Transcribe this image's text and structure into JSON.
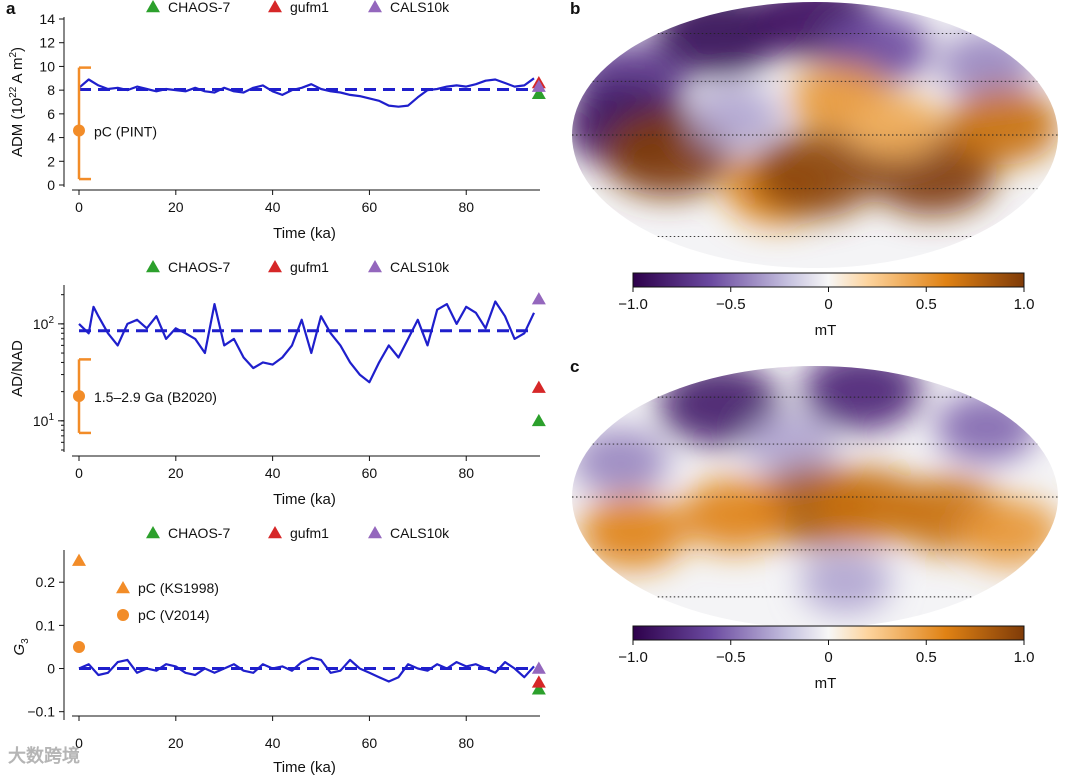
{
  "panel_labels": [
    "a",
    "b",
    "c"
  ],
  "watermark": "大数跨境",
  "chart_data": [
    {
      "type": "line",
      "panel": "a",
      "title": "",
      "xlabel": "Time (ka)",
      "ylabel": "ADM (10²² A m²)",
      "xlim": [
        -1,
        96
      ],
      "ylim": [
        0,
        14
      ],
      "xticks": [
        "0",
        "20",
        "40",
        "60",
        "80"
      ],
      "yticks": [
        "0",
        "2",
        "4",
        "6",
        "8",
        "10",
        "12",
        "14"
      ],
      "legend": [
        {
          "label": "CHAOS-7",
          "color": "#2ca02c"
        },
        {
          "label": "gufm1",
          "color": "#d62728"
        },
        {
          "label": "CALS10k",
          "color": "#9467bd"
        }
      ],
      "series": [
        {
          "name": "model",
          "color": "#1f1fcc",
          "x": [
            0,
            2,
            4,
            6,
            8,
            10,
            12,
            14,
            16,
            18,
            20,
            22,
            24,
            26,
            28,
            30,
            32,
            34,
            36,
            38,
            40,
            42,
            44,
            46,
            48,
            50,
            52,
            54,
            56,
            58,
            60,
            62,
            64,
            66,
            68,
            70,
            72,
            74,
            76,
            78,
            80,
            82,
            84,
            86,
            88,
            90,
            92,
            94
          ],
          "values": [
            8.2,
            8.9,
            8.4,
            8.1,
            8.2,
            8.0,
            8.3,
            8.1,
            7.9,
            8.1,
            8.0,
            7.9,
            8.2,
            7.9,
            7.8,
            8.2,
            7.9,
            7.8,
            8.2,
            8.4,
            7.9,
            7.6,
            8.0,
            8.2,
            8.5,
            8.1,
            7.9,
            7.8,
            7.6,
            7.5,
            7.3,
            7.1,
            6.7,
            6.6,
            6.7,
            7.4,
            8.0,
            8.1,
            8.3,
            8.4,
            8.3,
            8.5,
            8.8,
            8.9,
            8.6,
            8.3,
            8.4,
            9.0
          ]
        }
      ],
      "reference": {
        "label": "mean",
        "value": 8.05,
        "style": "dashed"
      },
      "markers": [
        {
          "label": "CHAOS-7",
          "x": 95,
          "y": 7.7,
          "color": "#2ca02c",
          "shape": "triangle"
        },
        {
          "label": "gufm1",
          "x": 95,
          "y": 8.6,
          "color": "#d62728",
          "shape": "triangle"
        },
        {
          "label": "CALS10k",
          "x": 95,
          "y": 8.3,
          "color": "#9467bd",
          "shape": "triangle"
        }
      ],
      "errorbar": {
        "label": "pC (PINT)",
        "x": 0,
        "y": 4.6,
        "low": 0.5,
        "high": 9.9,
        "color": "#f28c28"
      }
    },
    {
      "type": "line",
      "panel": "a-middle",
      "xlabel": "Time (ka)",
      "ylabel": "AD/NAD",
      "yscale": "log",
      "xlim": [
        -1,
        96
      ],
      "ylim": [
        5,
        240
      ],
      "xticks": [
        "0",
        "20",
        "40",
        "60",
        "80"
      ],
      "yticks": [
        {
          "label": "10",
          "sup": "1",
          "value": 10
        },
        {
          "label": "10",
          "sup": "2",
          "value": 100
        }
      ],
      "legend": [
        {
          "label": "CHAOS-7",
          "color": "#2ca02c"
        },
        {
          "label": "gufm1",
          "color": "#d62728"
        },
        {
          "label": "CALS10k",
          "color": "#9467bd"
        }
      ],
      "series": [
        {
          "name": "model",
          "color": "#1f1fcc",
          "x": [
            0,
            2,
            3,
            4,
            6,
            8,
            10,
            12,
            14,
            16,
            18,
            20,
            22,
            24,
            26,
            28,
            30,
            32,
            34,
            36,
            38,
            40,
            42,
            44,
            46,
            48,
            50,
            52,
            54,
            56,
            58,
            60,
            62,
            64,
            66,
            68,
            70,
            72,
            74,
            76,
            78,
            80,
            82,
            84,
            86,
            88,
            90,
            92,
            94
          ],
          "values": [
            100,
            80,
            150,
            120,
            80,
            60,
            100,
            110,
            90,
            120,
            70,
            90,
            80,
            70,
            50,
            160,
            60,
            70,
            45,
            35,
            40,
            38,
            45,
            60,
            110,
            50,
            120,
            80,
            60,
            40,
            30,
            25,
            40,
            60,
            45,
            70,
            110,
            60,
            140,
            160,
            100,
            150,
            130,
            90,
            170,
            120,
            70,
            80,
            130
          ]
        }
      ],
      "reference": {
        "label": "mean",
        "value": 85,
        "style": "dashed"
      },
      "markers": [
        {
          "label": "CHAOS-7",
          "x": 95,
          "y": 10,
          "color": "#2ca02c",
          "shape": "triangle"
        },
        {
          "label": "gufm1",
          "x": 95,
          "y": 22,
          "color": "#d62728",
          "shape": "triangle"
        },
        {
          "label": "CALS10k",
          "x": 95,
          "y": 180,
          "color": "#9467bd",
          "shape": "triangle"
        }
      ],
      "errorbar": {
        "label": "1.5–2.9 Ga (B2020)",
        "x": 0,
        "y": 18,
        "low": 7.5,
        "high": 43,
        "color": "#f28c28"
      }
    },
    {
      "type": "line",
      "panel": "a-bottom",
      "xlabel": "Time (ka)",
      "ylabel": "G3",
      "ylabel_main": "G",
      "ylabel_sub": "3",
      "xlim": [
        -1,
        96
      ],
      "ylim": [
        -0.11,
        0.27
      ],
      "xticks": [
        "0",
        "20",
        "40",
        "60",
        "80"
      ],
      "yticks": [
        "−0.1",
        "0",
        "0.1",
        "0.2"
      ],
      "legend": [
        {
          "label": "CHAOS-7",
          "color": "#2ca02c"
        },
        {
          "label": "gufm1",
          "color": "#d62728"
        },
        {
          "label": "CALS10k",
          "color": "#9467bd"
        }
      ],
      "series": [
        {
          "name": "model",
          "color": "#1f1fcc",
          "x": [
            0,
            2,
            4,
            6,
            8,
            10,
            12,
            14,
            16,
            18,
            20,
            22,
            24,
            26,
            28,
            30,
            32,
            34,
            36,
            38,
            40,
            42,
            44,
            46,
            48,
            50,
            52,
            54,
            56,
            58,
            60,
            62,
            64,
            66,
            68,
            70,
            72,
            74,
            76,
            78,
            80,
            82,
            84,
            86,
            88,
            90,
            92,
            94
          ],
          "values": [
            0.0,
            0.01,
            -0.015,
            -0.01,
            0.015,
            0.02,
            -0.01,
            0.0,
            -0.005,
            0.01,
            0.005,
            -0.01,
            -0.015,
            0.0,
            -0.01,
            0.0,
            0.01,
            -0.005,
            -0.01,
            0.01,
            0.0,
            0.005,
            -0.005,
            0.015,
            0.025,
            0.02,
            -0.01,
            -0.005,
            0.02,
            0.0,
            -0.01,
            -0.02,
            -0.03,
            -0.02,
            0.01,
            0.0,
            -0.005,
            0.01,
            0.0,
            0.015,
            0.005,
            0.01,
            0.0,
            -0.01,
            0.015,
            0.0,
            -0.02,
            0.005
          ]
        }
      ],
      "reference": {
        "label": "zero",
        "value": 0.0,
        "style": "dashed"
      },
      "markers": [
        {
          "label": "CHAOS-7",
          "x": 95,
          "y": -0.048,
          "color": "#2ca02c",
          "shape": "triangle"
        },
        {
          "label": "gufm1",
          "x": 95,
          "y": -0.032,
          "color": "#d62728",
          "shape": "triangle"
        },
        {
          "label": "CALS10k",
          "x": 95,
          "y": 0.0,
          "color": "#9467bd",
          "shape": "triangle"
        },
        {
          "label": "pC (KS1998)",
          "x": 0,
          "y": 0.25,
          "color": "#f28c28",
          "shape": "triangle"
        },
        {
          "label": "pC (V2014)",
          "x": 0,
          "y": 0.05,
          "color": "#f28c28",
          "shape": "circle"
        }
      ]
    },
    {
      "type": "heatmap",
      "panel": "b",
      "projection": "Mollweide",
      "colormap": "purple-white-orange (PuOr)",
      "colorbar": {
        "label": "mT",
        "range": [
          -1.0,
          1.0
        ],
        "ticks": [
          "−1.0",
          "−0.5",
          "0",
          "0.5",
          "1.0"
        ]
      },
      "blobs": [
        {
          "lon": -110,
          "lat": 60,
          "value": -0.95
        },
        {
          "lon": 0,
          "lat": 72,
          "value": -0.9
        },
        {
          "lon": -150,
          "lat": 30,
          "value": -0.7
        },
        {
          "lon": 60,
          "lat": 50,
          "value": -0.6
        },
        {
          "lon": 150,
          "lat": 40,
          "value": -0.4
        },
        {
          "lon": -140,
          "lat": 5,
          "value": -0.9
        },
        {
          "lon": -110,
          "lat": -10,
          "value": 1.0
        },
        {
          "lon": -30,
          "lat": -30,
          "value": 0.6
        },
        {
          "lon": 0,
          "lat": -22,
          "value": 0.95
        },
        {
          "lon": 90,
          "lat": -20,
          "value": 1.0
        },
        {
          "lon": 140,
          "lat": 5,
          "value": 0.7
        },
        {
          "lon": 20,
          "lat": 20,
          "value": 0.5
        },
        {
          "lon": 60,
          "lat": 5,
          "value": 0.4
        },
        {
          "lon": -60,
          "lat": 10,
          "value": -0.3
        }
      ]
    },
    {
      "type": "heatmap",
      "panel": "c",
      "projection": "Mollweide",
      "colormap": "purple-white-orange (PuOr)",
      "colorbar": {
        "label": "mT",
        "range": [
          -1.0,
          1.0
        ],
        "ticks": [
          "−1.0",
          "−0.5",
          "0",
          "0.5",
          "1.0"
        ]
      },
      "blobs": [
        {
          "lon": -100,
          "lat": 55,
          "value": -0.85
        },
        {
          "lon": 60,
          "lat": 65,
          "value": -0.8
        },
        {
          "lon": 150,
          "lat": 40,
          "value": -0.5
        },
        {
          "lon": -150,
          "lat": 20,
          "value": -0.4
        },
        {
          "lon": -20,
          "lat": 30,
          "value": -0.3
        },
        {
          "lon": 0,
          "lat": -5,
          "value": 0.85
        },
        {
          "lon": 40,
          "lat": -5,
          "value": 0.7
        },
        {
          "lon": 100,
          "lat": -10,
          "value": 0.7
        },
        {
          "lon": -60,
          "lat": -10,
          "value": 0.6
        },
        {
          "lon": -140,
          "lat": -20,
          "value": 0.6
        },
        {
          "lon": 150,
          "lat": -20,
          "value": 0.5
        },
        {
          "lon": 30,
          "lat": -50,
          "value": -0.3
        }
      ]
    }
  ]
}
